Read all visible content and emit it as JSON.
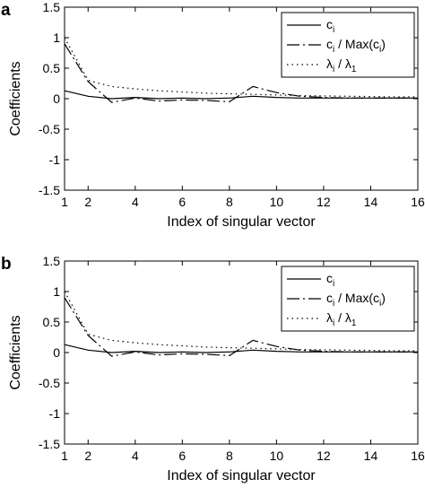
{
  "figure": {
    "panels": [
      {
        "label": "a"
      },
      {
        "label": "b"
      }
    ]
  },
  "chart_data": [
    {
      "type": "line",
      "panel": "a",
      "xlabel": "Index of singular vector",
      "ylabel": "Coefficients",
      "xlim": [
        1,
        16
      ],
      "ylim": [
        -1.5,
        1.5
      ],
      "xticks": [
        1,
        2,
        4,
        6,
        8,
        10,
        12,
        14,
        16
      ],
      "yticks": [
        -1.5,
        -1,
        -0.5,
        0,
        0.5,
        1,
        1.5
      ],
      "grid": false,
      "legend_position": "top-right",
      "series": [
        {
          "name": "c_i",
          "legend_main": "c",
          "legend_sub": "i",
          "style": "solid",
          "x": [
            1,
            2,
            3,
            4,
            5,
            6,
            7,
            8,
            9,
            10,
            11,
            12,
            13,
            14,
            15,
            16
          ],
          "y": [
            0.13,
            0.04,
            0.0,
            0.02,
            0.0,
            0.01,
            0.0,
            0.01,
            0.04,
            0.02,
            0.01,
            0.01,
            0.01,
            0.01,
            0.01,
            0.01
          ]
        },
        {
          "name": "c_i / Max(c_i)",
          "legend_main": "c",
          "legend_sub": "i",
          "legend_mid": "/  Max(c",
          "legend_sub2": "i",
          "legend_end": ")",
          "style": "dashdot",
          "x": [
            1,
            2,
            3,
            4,
            5,
            6,
            7,
            8,
            9,
            10,
            11,
            12,
            13,
            14,
            15,
            16
          ],
          "y": [
            0.9,
            0.28,
            -0.06,
            0.01,
            -0.04,
            -0.02,
            -0.03,
            -0.05,
            0.2,
            0.1,
            0.04,
            0.02,
            0.01,
            0.01,
            0.01,
            0.01
          ]
        },
        {
          "name": "λ_i / λ_1",
          "legend_main": "λ",
          "legend_sub": "i",
          "legend_mid": "/  λ",
          "legend_sub2": "1",
          "legend_end": "",
          "style": "dotted",
          "x": [
            1,
            2,
            3,
            4,
            5,
            6,
            7,
            8,
            9,
            10,
            11,
            12,
            13,
            14,
            15,
            16
          ],
          "y": [
            1.0,
            0.3,
            0.2,
            0.16,
            0.13,
            0.11,
            0.09,
            0.08,
            0.07,
            0.06,
            0.05,
            0.045,
            0.04,
            0.035,
            0.03,
            0.03
          ]
        }
      ]
    },
    {
      "type": "line",
      "panel": "b",
      "xlabel": "Index of singular vector",
      "ylabel": "Coefficients",
      "xlim": [
        1,
        16
      ],
      "ylim": [
        -1.5,
        1.5
      ],
      "xticks": [
        1,
        2,
        4,
        6,
        8,
        10,
        12,
        14,
        16
      ],
      "yticks": [
        -1.5,
        -1,
        -0.5,
        0,
        0.5,
        1,
        1.5
      ],
      "grid": false,
      "legend_position": "top-right",
      "series": [
        {
          "name": "c_i",
          "legend_main": "c",
          "legend_sub": "i",
          "style": "solid",
          "x": [
            1,
            2,
            3,
            4,
            5,
            6,
            7,
            8,
            9,
            10,
            11,
            12,
            13,
            14,
            15,
            16
          ],
          "y": [
            0.13,
            0.04,
            0.0,
            0.02,
            0.0,
            0.01,
            0.0,
            0.01,
            0.04,
            0.02,
            0.01,
            0.01,
            0.01,
            0.01,
            0.01,
            0.01
          ]
        },
        {
          "name": "c_i / Max(c_i)",
          "legend_main": "c",
          "legend_sub": "i",
          "legend_mid": "/  Max(c",
          "legend_sub2": "i",
          "legend_end": ")",
          "style": "dashdot",
          "x": [
            1,
            2,
            3,
            4,
            5,
            6,
            7,
            8,
            9,
            10,
            11,
            12,
            13,
            14,
            15,
            16
          ],
          "y": [
            0.9,
            0.28,
            -0.06,
            0.01,
            -0.04,
            -0.02,
            -0.03,
            -0.05,
            0.2,
            0.1,
            0.04,
            0.02,
            0.01,
            0.01,
            0.01,
            0.01
          ]
        },
        {
          "name": "λ_i / λ_1",
          "legend_main": "λ",
          "legend_sub": "i",
          "legend_mid": "/  λ",
          "legend_sub2": "1",
          "legend_end": "",
          "style": "dotted",
          "x": [
            1,
            2,
            3,
            4,
            5,
            6,
            7,
            8,
            9,
            10,
            11,
            12,
            13,
            14,
            15,
            16
          ],
          "y": [
            1.0,
            0.3,
            0.2,
            0.16,
            0.13,
            0.11,
            0.09,
            0.08,
            0.07,
            0.06,
            0.05,
            0.045,
            0.04,
            0.035,
            0.03,
            0.03
          ]
        }
      ]
    }
  ]
}
